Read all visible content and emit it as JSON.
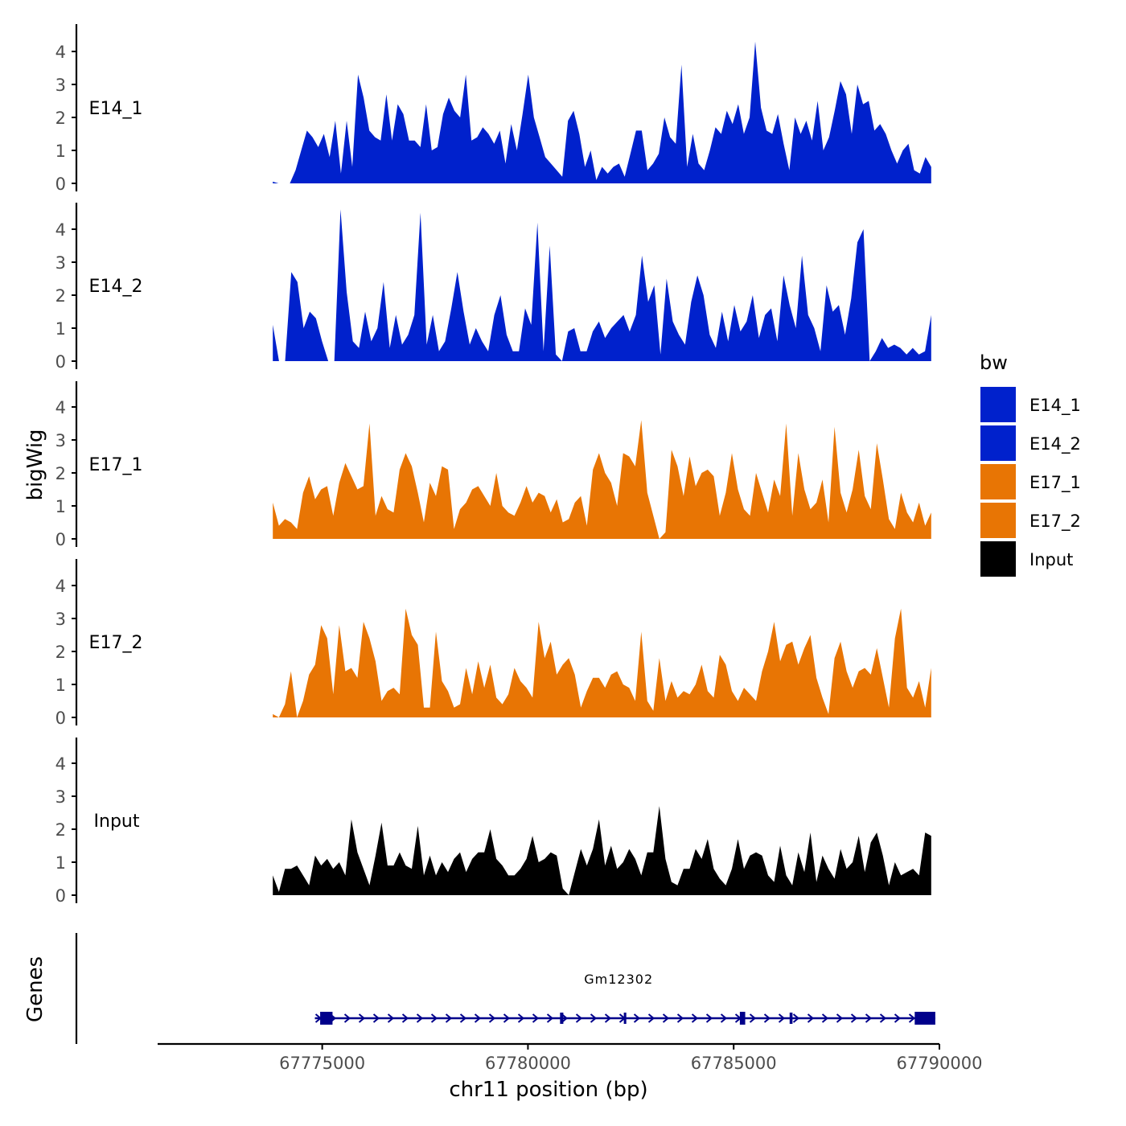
{
  "colors": {
    "E14": "#0021CC",
    "E17": "#E87504",
    "Input": "#000000",
    "gene": "#00008B",
    "axis": "#000000",
    "tick_text": "#4D4D4D"
  },
  "chart_data": {
    "type": "area",
    "chromosome": "chr11",
    "xlabel": "chr11 position (bp)",
    "ylabel": "bigWig",
    "genes_label": "Genes",
    "xlim": [
      67771000,
      67790000
    ],
    "x_ticks": [
      67775000,
      67780000,
      67785000,
      67790000
    ],
    "x_tick_labels": [
      "67775000",
      "67780000",
      "67785000",
      "67790000"
    ],
    "ylim": [
      0,
      4.7
    ],
    "y_ticks": [
      0,
      1,
      2,
      3,
      4
    ],
    "y_tick_labels": [
      "0",
      "1",
      "2",
      "3",
      "4"
    ],
    "legend": {
      "title": "bw",
      "placement": "right",
      "entries": [
        {
          "label": "E14_1",
          "color": "#0021CC"
        },
        {
          "label": "E14_2",
          "color": "#0021CC"
        },
        {
          "label": "E17_1",
          "color": "#E87504"
        },
        {
          "label": "E17_2",
          "color": "#E87504"
        },
        {
          "label": "Input",
          "color": "#000000"
        }
      ]
    },
    "series": [
      {
        "name": "E14_1",
        "color": "#0021CC",
        "x_start": 67773800,
        "x_end": 67789800,
        "values": [
          0.05,
          0,
          0,
          0,
          0.4,
          1.0,
          1.6,
          1.4,
          1.1,
          1.5,
          0.8,
          1.9,
          0.3,
          1.9,
          0.5,
          3.3,
          2.6,
          1.6,
          1.4,
          1.3,
          2.7,
          1.3,
          2.4,
          2.1,
          1.3,
          1.3,
          1.1,
          2.4,
          1.0,
          1.1,
          2.1,
          2.6,
          2.2,
          2.0,
          3.3,
          1.3,
          1.4,
          1.7,
          1.5,
          1.2,
          1.6,
          0.6,
          1.8,
          1.0,
          2.1,
          3.3,
          2.0,
          1.4,
          0.8,
          0.6,
          0.4,
          0.2,
          1.9,
          2.2,
          1.5,
          0.5,
          1.0,
          0.1,
          0.5,
          0.3,
          0.5,
          0.6,
          0.2,
          0.9,
          1.6,
          1.6,
          0.4,
          0.6,
          0.9,
          2.0,
          1.4,
          1.2,
          3.6,
          0.5,
          1.5,
          0.6,
          0.4,
          1.0,
          1.7,
          1.5,
          2.2,
          1.8,
          2.4,
          1.5,
          2.0,
          4.3,
          2.3,
          1.6,
          1.5,
          2.1,
          1.2,
          0.4,
          2.0,
          1.5,
          1.9,
          1.3,
          2.5,
          1.0,
          1.4,
          2.2,
          3.1,
          2.7,
          1.5,
          3.0,
          2.4,
          2.5,
          1.6,
          1.8,
          1.5,
          1.0,
          0.6,
          1.0,
          1.2,
          0.4,
          0.3,
          0.8,
          0.5
        ]
      },
      {
        "name": "E14_2",
        "color": "#0021CC",
        "x_start": 67773800,
        "x_end": 67789800,
        "values": [
          1.1,
          0,
          0,
          2.7,
          2.4,
          1.0,
          1.5,
          1.3,
          0.6,
          0,
          0,
          4.6,
          2.1,
          0.6,
          0.4,
          1.5,
          0.6,
          1.0,
          2.4,
          0.4,
          1.4,
          0.5,
          0.8,
          1.4,
          4.5,
          0.5,
          1.4,
          0.3,
          0.6,
          1.6,
          2.7,
          1.5,
          0.5,
          1.0,
          0.6,
          0.3,
          1.4,
          2.0,
          0.8,
          0.3,
          0.3,
          1.6,
          1.1,
          4.2,
          0.3,
          3.5,
          0.2,
          0,
          0.9,
          1.0,
          0.3,
          0.3,
          0.9,
          1.2,
          0.7,
          1.0,
          1.2,
          1.4,
          0.9,
          1.4,
          3.2,
          1.8,
          2.3,
          0.2,
          2.5,
          1.2,
          0.8,
          0.5,
          1.8,
          2.6,
          2.0,
          0.8,
          0.4,
          1.5,
          0.6,
          1.7,
          0.9,
          1.2,
          2.0,
          0.7,
          1.4,
          1.6,
          0.6,
          2.6,
          1.7,
          1.0,
          3.2,
          1.4,
          1.0,
          0.3,
          2.3,
          1.5,
          1.7,
          0.8,
          1.9,
          3.6,
          4.0,
          0,
          0.3,
          0.7,
          0.4,
          0.5,
          0.4,
          0.2,
          0.4,
          0.2,
          0.3,
          1.4
        ]
      },
      {
        "name": "E17_1",
        "color": "#E87504",
        "x_start": 67773800,
        "x_end": 67789800,
        "values": [
          1.1,
          0.4,
          0.6,
          0.5,
          0.3,
          1.4,
          1.9,
          1.2,
          1.5,
          1.6,
          0.7,
          1.7,
          2.3,
          1.9,
          1.5,
          1.6,
          3.5,
          0.7,
          1.3,
          0.9,
          0.8,
          2.1,
          2.6,
          2.2,
          1.4,
          0.5,
          1.7,
          1.3,
          2.2,
          2.1,
          0.3,
          0.9,
          1.1,
          1.5,
          1.6,
          1.3,
          1.0,
          2.0,
          1.0,
          0.8,
          0.7,
          1.1,
          1.6,
          1.1,
          1.4,
          1.3,
          0.8,
          1.2,
          0.5,
          0.6,
          1.1,
          1.3,
          0.4,
          2.1,
          2.6,
          2.0,
          1.7,
          1.0,
          2.6,
          2.5,
          2.2,
          3.6,
          1.4,
          0.7,
          0,
          0.2,
          2.7,
          2.2,
          1.3,
          2.5,
          1.6,
          2.0,
          2.1,
          1.9,
          0.7,
          1.4,
          2.6,
          1.5,
          0.9,
          0.7,
          2.0,
          1.4,
          0.8,
          1.8,
          1.3,
          3.5,
          0.7,
          2.6,
          1.5,
          0.9,
          1.1,
          1.8,
          0.5,
          3.4,
          1.4,
          0.8,
          1.5,
          2.7,
          1.3,
          0.9,
          2.9,
          1.8,
          0.6,
          0.3,
          1.4,
          0.8,
          0.5,
          1.1,
          0.4,
          0.8
        ]
      },
      {
        "name": "E17_2",
        "color": "#E87504",
        "x_start": 67773800,
        "x_end": 67789800,
        "values": [
          0.1,
          0,
          0.4,
          1.4,
          0,
          0.5,
          1.3,
          1.6,
          2.8,
          2.4,
          0.7,
          2.8,
          1.4,
          1.5,
          1.2,
          2.9,
          2.4,
          1.7,
          0.5,
          0.8,
          0.9,
          0.7,
          3.3,
          2.5,
          2.2,
          0.3,
          0.3,
          2.6,
          1.1,
          0.8,
          0.3,
          0.4,
          1.5,
          0.7,
          1.7,
          0.9,
          1.6,
          0.6,
          0.4,
          0.7,
          1.5,
          1.1,
          0.9,
          0.6,
          2.9,
          1.8,
          2.3,
          1.3,
          1.6,
          1.8,
          1.3,
          0.3,
          0.8,
          1.2,
          1.2,
          0.9,
          1.3,
          1.4,
          1.0,
          0.9,
          0.5,
          2.6,
          0.5,
          0.2,
          1.8,
          0.5,
          1.1,
          0.6,
          0.8,
          0.7,
          1.0,
          1.6,
          0.8,
          0.6,
          1.9,
          1.6,
          0.8,
          0.5,
          0.9,
          0.7,
          0.5,
          1.4,
          2.0,
          2.9,
          1.7,
          2.2,
          2.3,
          1.6,
          2.1,
          2.5,
          1.2,
          0.6,
          0.1,
          1.8,
          2.3,
          1.4,
          0.9,
          1.4,
          1.5,
          1.3,
          2.1,
          1.2,
          0.3,
          2.4,
          3.3,
          0.9,
          0.6,
          1.1,
          0.3,
          1.5
        ]
      },
      {
        "name": "Input",
        "color": "#000000",
        "x_start": 67773800,
        "x_end": 67789800,
        "values": [
          0.6,
          0.1,
          0.8,
          0.8,
          0.9,
          0.6,
          0.3,
          1.2,
          0.9,
          1.1,
          0.8,
          1.0,
          0.6,
          2.3,
          1.3,
          0.8,
          0.3,
          1.2,
          2.2,
          0.9,
          0.9,
          1.3,
          0.9,
          0.8,
          2.1,
          0.6,
          1.2,
          0.6,
          1.0,
          0.7,
          1.1,
          1.3,
          0.7,
          1.1,
          1.3,
          1.3,
          2.0,
          1.1,
          0.9,
          0.6,
          0.6,
          0.8,
          1.1,
          1.8,
          1.0,
          1.1,
          1.3,
          1.2,
          0.2,
          0,
          0.7,
          1.4,
          0.9,
          1.4,
          2.3,
          0.9,
          1.5,
          0.8,
          1.0,
          1.4,
          1.1,
          0.6,
          1.3,
          1.3,
          2.7,
          1.1,
          0.4,
          0.3,
          0.8,
          0.8,
          1.4,
          1.1,
          1.7,
          0.8,
          0.5,
          0.3,
          0.8,
          1.7,
          0.8,
          1.2,
          1.3,
          1.2,
          0.6,
          0.4,
          1.5,
          0.6,
          0.3,
          1.3,
          0.7,
          1.9,
          0.4,
          1.2,
          0.8,
          0.5,
          1.4,
          0.8,
          1.0,
          1.8,
          0.7,
          1.6,
          1.9,
          1.2,
          0.3,
          1.0,
          0.6,
          0.7,
          0.8,
          0.6,
          1.9,
          1.8
        ]
      }
    ],
    "gene_track": {
      "gene_name": "Gm12302",
      "strand": "+",
      "start": 67774900,
      "end": 67789900,
      "exons": [
        [
          67774950,
          67775250
        ],
        [
          67780780,
          67780860
        ],
        [
          67782330,
          67782390
        ],
        [
          67785150,
          67785280
        ],
        [
          67786360,
          67786430
        ],
        [
          67789400,
          67789900
        ]
      ]
    }
  }
}
